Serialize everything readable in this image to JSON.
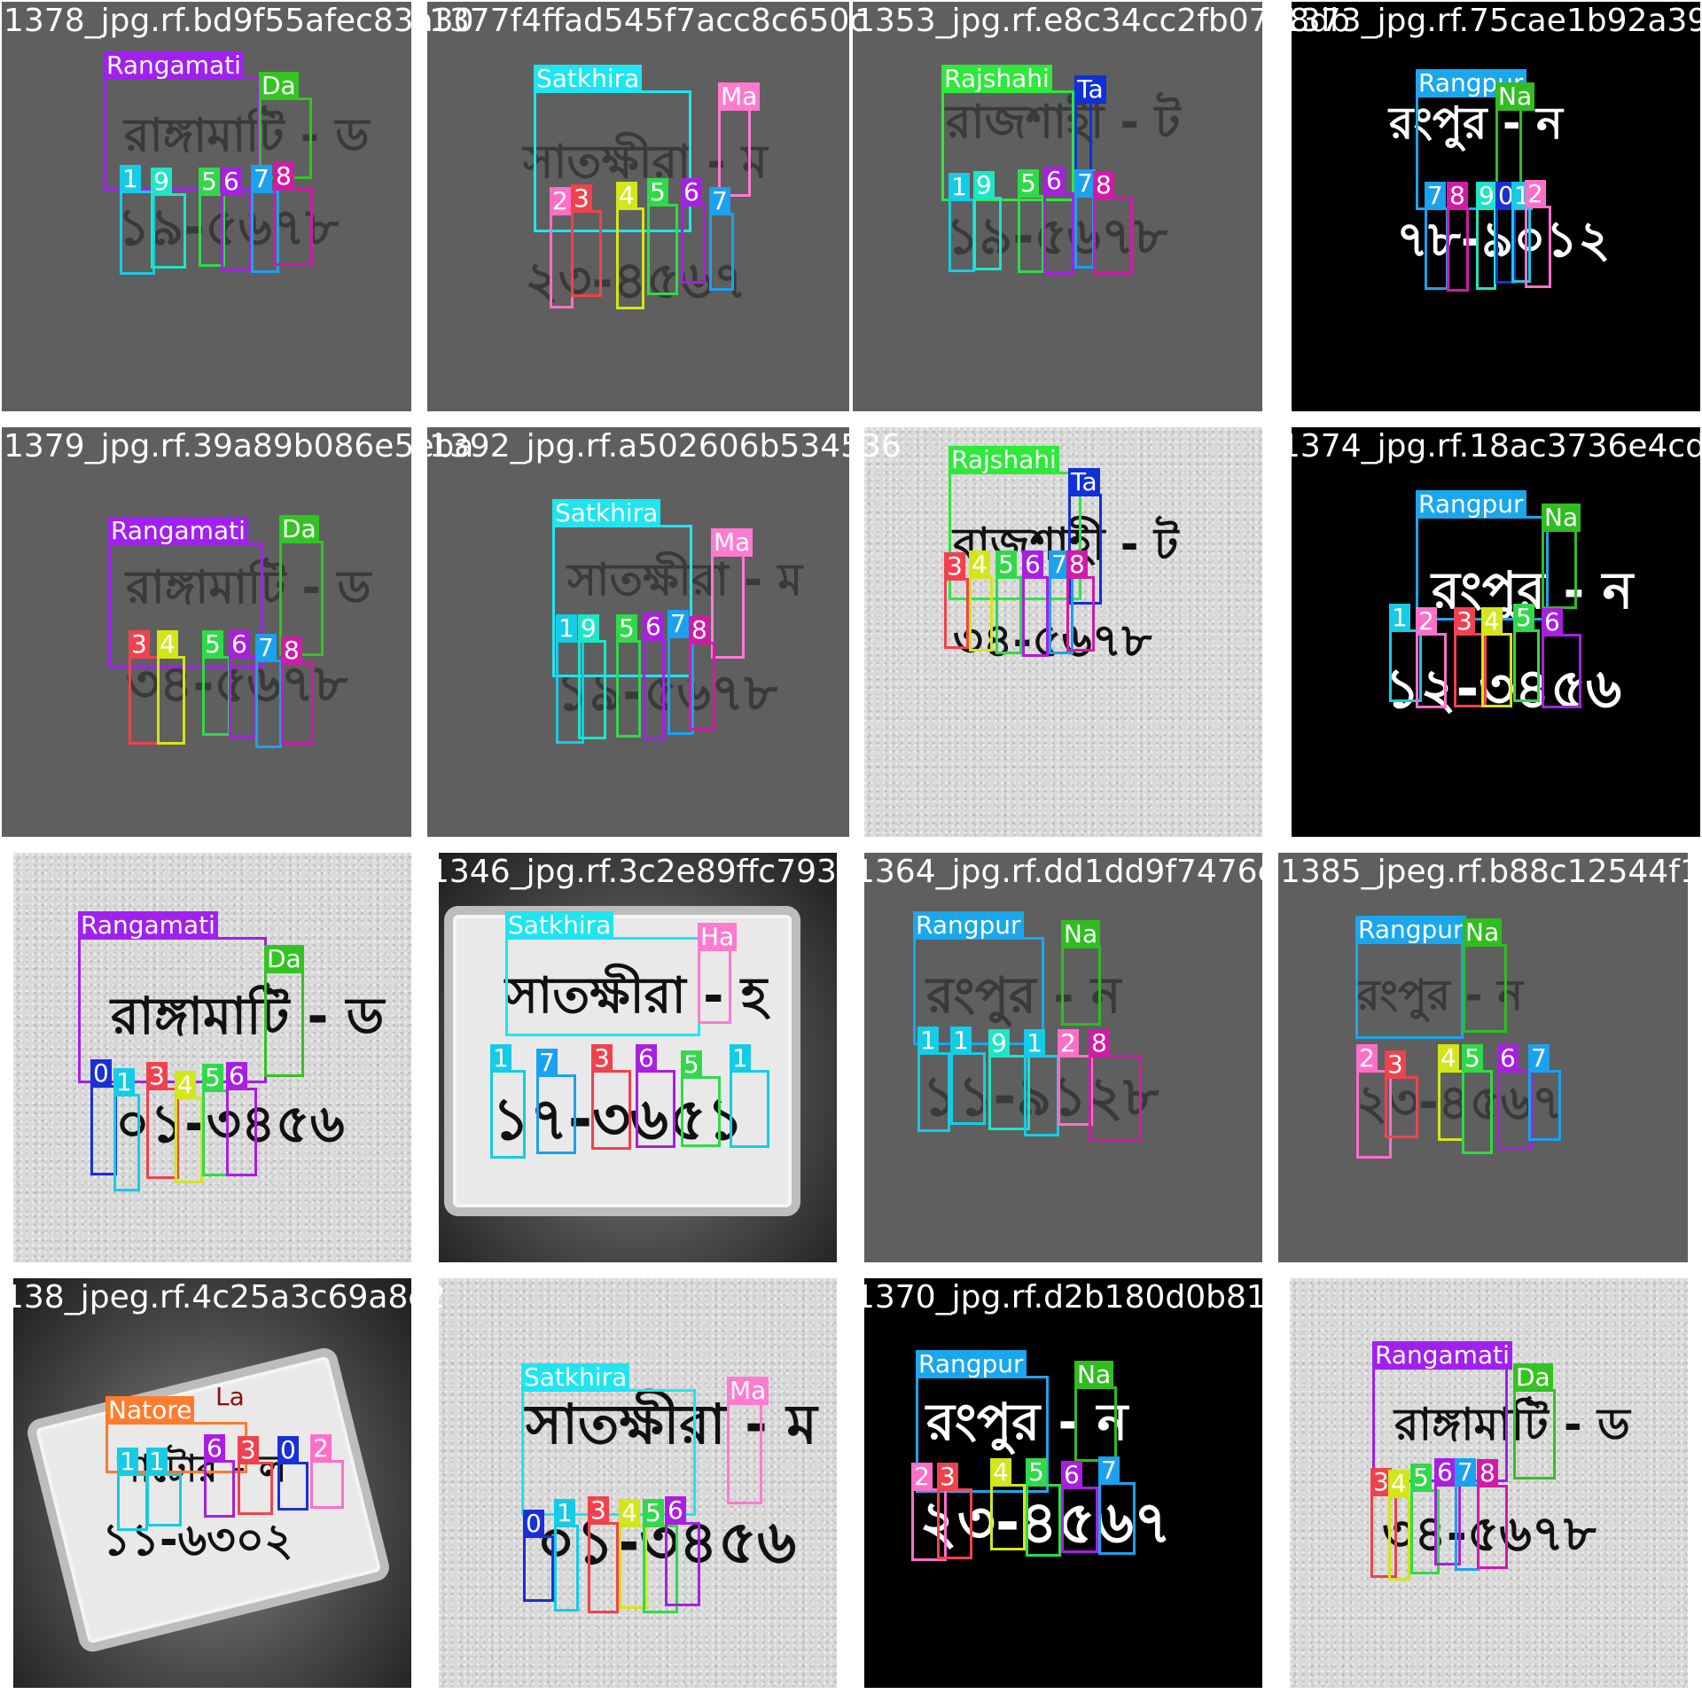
{
  "colors": {
    "Rangamati": "#a020f0",
    "Satkhira": "#1ee5f0",
    "Rajshahi": "#2ee83a",
    "Rangpur": "#1aa7ee",
    "Natore": "#ff7b2e",
    "Da": "#33c421",
    "Ma": "#ff7ad1",
    "Ta": "#1030d8",
    "Na": "#2fbd1f",
    "Ha": "#ff7ad1",
    "La": "#ffffff",
    "0": "#1b2fd9",
    "1": "#16cbe6",
    "2": "#ff6fc8",
    "3": "#f0424e",
    "4": "#d4e51a",
    "5": "#31d94a",
    "6": "#a81fe0",
    "7": "#1aa1f0",
    "8": "#d11aa8",
    "9": "#1ee5c6"
  },
  "tiles": [
    {
      "filename": "1378_jpg.rf.bd9f55afec83a30",
      "bg": "gray",
      "plate_text": [
        {
          "text": "রাঙ্গামাটি - ড",
          "size": 52
        },
        {
          "text": "১৯-৫৬৭৮",
          "size": 58
        }
      ],
      "boxes": [
        {
          "label": "Rangamati"
        },
        {
          "label": "Da"
        },
        {
          "label": "1"
        },
        {
          "label": "9"
        },
        {
          "label": "5"
        },
        {
          "label": "6"
        },
        {
          "label": "7"
        },
        {
          "label": "8"
        }
      ]
    },
    {
      "filename": "1377f4ffad545f7acc8c650c",
      "bg": "gray",
      "plate_text": [
        {
          "text": "সাতক্ষীরা - ম",
          "size": 52
        },
        {
          "text": "২৩-৪৫৬৭",
          "size": 58
        }
      ],
      "boxes": [
        {
          "label": "Satkhira"
        },
        {
          "label": "Ma"
        },
        {
          "label": "2"
        },
        {
          "label": "3"
        },
        {
          "label": "4"
        },
        {
          "label": "5"
        },
        {
          "label": "6"
        },
        {
          "label": "7"
        }
      ]
    },
    {
      "filename": "1353_jpg.rf.e8c34cc2fb07b8db",
      "bg": "gray",
      "plate_text": [
        {
          "text": "রাজশাহী - ট",
          "size": 52
        },
        {
          "text": "১৯-৫৬৭৮",
          "size": 58
        }
      ],
      "boxes": [
        {
          "label": "Rajshahi"
        },
        {
          "label": "Ta"
        },
        {
          "label": "1"
        },
        {
          "label": "9"
        },
        {
          "label": "5"
        },
        {
          "label": "6"
        },
        {
          "label": "7"
        },
        {
          "label": "8"
        }
      ]
    },
    {
      "filename": "1373_jpg.rf.75cae1b92a3909",
      "bg": "black",
      "plate_text": [
        {
          "text": "রংপুর - ন",
          "size": 50
        },
        {
          "text": "৭৮-৯০১২",
          "size": 56
        }
      ],
      "boxes": [
        {
          "label": "Rangpur"
        },
        {
          "label": "Na"
        },
        {
          "label": "7"
        },
        {
          "label": "8"
        },
        {
          "label": "9"
        },
        {
          "label": "0"
        },
        {
          "label": "1"
        },
        {
          "label": "2"
        }
      ]
    },
    {
      "filename": "1379_jpg.rf.39a89b086e5eba",
      "bg": "gray",
      "plate_text": [
        {
          "text": "রাঙ্গামাটি - ড",
          "size": 52
        },
        {
          "text": "৩৪-৫৬৭৮",
          "size": 58
        }
      ],
      "boxes": [
        {
          "label": "Rangamati"
        },
        {
          "label": "Da"
        },
        {
          "label": "3"
        },
        {
          "label": "4"
        },
        {
          "label": "5"
        },
        {
          "label": "6"
        },
        {
          "label": "7"
        },
        {
          "label": "8"
        }
      ]
    },
    {
      "filename": "1392_jpg.rf.a502606b534536",
      "bg": "gray",
      "plate_text": [
        {
          "text": "সাতক্ষীরা - ম",
          "size": 50
        },
        {
          "text": "১৯-৫৬৭৮",
          "size": 58
        }
      ],
      "boxes": [
        {
          "label": "Satkhira"
        },
        {
          "label": "Ma"
        },
        {
          "label": "1"
        },
        {
          "label": "9"
        },
        {
          "label": "5"
        },
        {
          "label": "6"
        },
        {
          "label": "7"
        },
        {
          "label": "8"
        }
      ]
    },
    {
      "filename": "",
      "bg": "concrete",
      "plate_text": [
        {
          "text": "রাজশাহী - ট",
          "size": 50
        },
        {
          "text": "৩৪-৫৬৭৮",
          "size": 52
        }
      ],
      "boxes": [
        {
          "label": "Rajshahi"
        },
        {
          "label": "Ta"
        },
        {
          "label": "3"
        },
        {
          "label": "4"
        },
        {
          "label": "5"
        },
        {
          "label": "6"
        },
        {
          "label": "7"
        },
        {
          "label": "8"
        }
      ]
    },
    {
      "filename": "1374_jpg.rf.18ac3736e4cd1",
      "bg": "black",
      "plate_text": [
        {
          "text": "রংপুর - ন",
          "size": 58
        },
        {
          "text": "১২-৩৪৫৬",
          "size": 62
        }
      ],
      "boxes": [
        {
          "label": "Rangpur"
        },
        {
          "label": "Na"
        },
        {
          "label": "1"
        },
        {
          "label": "2"
        },
        {
          "label": "3"
        },
        {
          "label": "4"
        },
        {
          "label": "5"
        },
        {
          "label": "6"
        }
      ]
    },
    {
      "filename": "",
      "bg": "concrete",
      "plate_text": [
        {
          "text": "রাঙ্গামাটি - ড",
          "size": 58
        },
        {
          "text": "০১-৩৪৫৬",
          "size": 60
        }
      ],
      "boxes": [
        {
          "label": "Rangamati"
        },
        {
          "label": "Da"
        },
        {
          "label": "0"
        },
        {
          "label": "1"
        },
        {
          "label": "3"
        },
        {
          "label": "4"
        },
        {
          "label": "5"
        },
        {
          "label": "6"
        }
      ]
    },
    {
      "filename": "1346_jpg.rf.3c2e89ffc793",
      "bg": "photo",
      "plate_text": [
        {
          "text": "সাতক্ষীরা - হ",
          "size": 56
        },
        {
          "text": "১৭-৩৬৫১",
          "size": 66
        }
      ],
      "boxes": [
        {
          "label": "Satkhira"
        },
        {
          "label": "Ha"
        },
        {
          "label": "1"
        },
        {
          "label": "7"
        },
        {
          "label": "3"
        },
        {
          "label": "6"
        },
        {
          "label": "5"
        },
        {
          "label": "1"
        }
      ]
    },
    {
      "filename": "1364_jpg.rf.dd1dd9f7476c",
      "bg": "gray",
      "plate_text": [
        {
          "text": "রংপুর - ন",
          "size": 56
        },
        {
          "text": "১১-৯১২৮",
          "size": 62
        }
      ],
      "boxes": [
        {
          "label": "Rangpur"
        },
        {
          "label": "Na"
        },
        {
          "label": "1"
        },
        {
          "label": "1"
        },
        {
          "label": "9"
        },
        {
          "label": "1"
        },
        {
          "label": "2"
        },
        {
          "label": "8"
        }
      ]
    },
    {
      "filename": "1385_jpeg.rf.b88c12544f1",
      "bg": "gray",
      "plate_text": [
        {
          "text": "রংপুর - ন",
          "size": 48
        },
        {
          "text": "২৩-৪৫৬৭",
          "size": 54
        }
      ],
      "boxes": [
        {
          "label": "Rangpur"
        },
        {
          "label": "Na"
        },
        {
          "label": "2"
        },
        {
          "label": "3"
        },
        {
          "label": "4"
        },
        {
          "label": "5"
        },
        {
          "label": "6"
        },
        {
          "label": "7"
        }
      ]
    },
    {
      "filename": "138_jpeg.rf.4c25a3c69a8c2",
      "bg": "photo-plate",
      "plate_text": [
        {
          "text": "নাটোর - ল",
          "size": 42
        },
        {
          "text": "১১-৬৩০২",
          "size": 50
        }
      ],
      "boxes": [
        {
          "label": "Natore"
        },
        {
          "label": "La"
        },
        {
          "label": "1"
        },
        {
          "label": "1"
        },
        {
          "label": "6"
        },
        {
          "label": "3"
        },
        {
          "label": "0"
        },
        {
          "label": "2"
        }
      ]
    },
    {
      "filename": "",
      "bg": "concrete",
      "plate_text": [
        {
          "text": "সাতক্ষীরা - ম",
          "size": 62
        },
        {
          "text": "০১-৩৪৫৬",
          "size": 68
        }
      ],
      "boxes": [
        {
          "label": "Satkhira"
        },
        {
          "label": "Ma"
        },
        {
          "label": "0"
        },
        {
          "label": "1"
        },
        {
          "label": "3"
        },
        {
          "label": "4"
        },
        {
          "label": "5"
        },
        {
          "label": "6"
        }
      ]
    },
    {
      "filename": "1370_jpg.rf.d2b180d0b818",
      "bg": "black",
      "plate_text": [
        {
          "text": "রংপুর - ন",
          "size": 58
        },
        {
          "text": "২৩-৪৫৬৭",
          "size": 66
        }
      ],
      "boxes": [
        {
          "label": "Rangpur"
        },
        {
          "label": "Na"
        },
        {
          "label": "2"
        },
        {
          "label": "3"
        },
        {
          "label": "4"
        },
        {
          "label": "5"
        },
        {
          "label": "6"
        },
        {
          "label": "7"
        }
      ]
    },
    {
      "filename": "",
      "bg": "concrete",
      "plate_text": [
        {
          "text": "রাঙ্গামাটি - ড",
          "size": 50
        },
        {
          "text": "৩৪-৫৬৭৮",
          "size": 56
        }
      ],
      "boxes": [
        {
          "label": "Rangamati"
        },
        {
          "label": "Da"
        },
        {
          "label": "3"
        },
        {
          "label": "4"
        },
        {
          "label": "5"
        },
        {
          "label": "6"
        },
        {
          "label": "7"
        },
        {
          "label": "8"
        }
      ]
    }
  ]
}
